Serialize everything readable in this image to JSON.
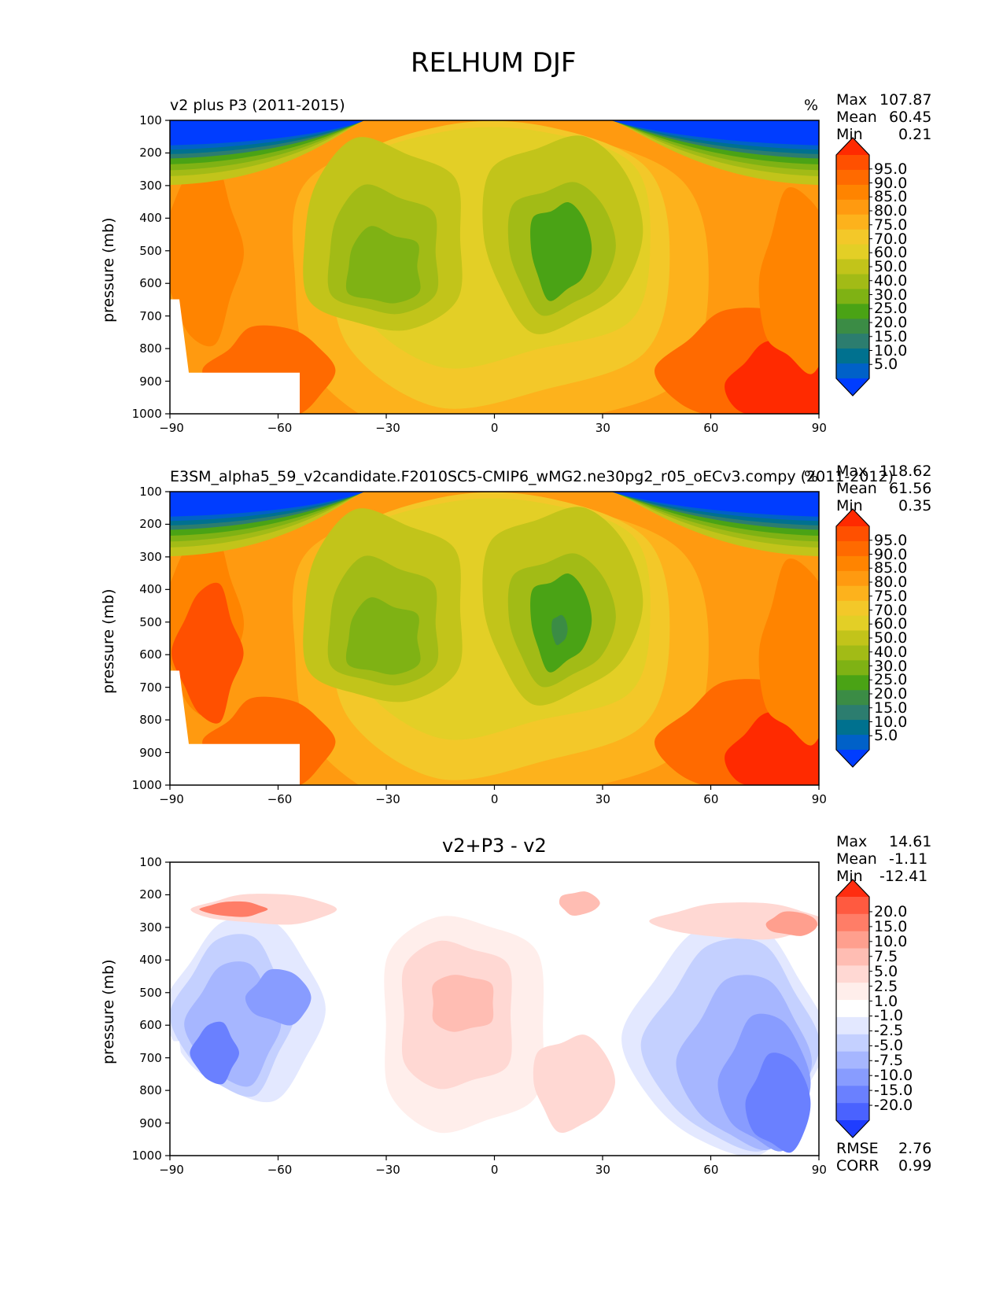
{
  "figure": {
    "title": "RELHUM DJF"
  },
  "chart_data": [
    {
      "type": "heatmap",
      "title": "v2 plus P3 (2011-2015)",
      "units": "%",
      "xlabel": "",
      "ylabel": "pressure (mb)",
      "xlim": [
        -90,
        90
      ],
      "ylim": [
        1000,
        100
      ],
      "xticks": [
        "−90",
        "−60",
        "−30",
        "0",
        "30",
        "60",
        "90"
      ],
      "yticks": [
        "100",
        "200",
        "300",
        "400",
        "500",
        "600",
        "700",
        "800",
        "900",
        "1000"
      ],
      "stats": {
        "max_label": "Max",
        "max": "107.87",
        "mean_label": "Mean",
        "mean": "60.45",
        "min_label": "Min",
        "min": "0.21"
      },
      "colorbar": {
        "levels": [
          "95.0",
          "90.0",
          "85.0",
          "80.0",
          "75.0",
          "70.0",
          "60.0",
          "50.0",
          "40.0",
          "30.0",
          "25.0",
          "20.0",
          "15.0",
          "10.0",
          "5.0"
        ],
        "colors": [
          "#ff2a00",
          "#ff5000",
          "#ff6a00",
          "#ff8400",
          "#ff9a10",
          "#fdb21c",
          "#f3c829",
          "#e3cf26",
          "#c2c41a",
          "#a2bb16",
          "#7fb214",
          "#4aa315",
          "#3b8c45",
          "#2c7d6f",
          "#00718f",
          "#0061c8",
          "#003dff"
        ]
      }
    },
    {
      "type": "heatmap",
      "title": "E3SM_alpha5_59_v2candidate.F2010SC5-CMIP6_wMG2.ne30pg2_r05_oECv3.compy (2011-2012)",
      "units": "%",
      "xlabel": "",
      "ylabel": "pressure (mb)",
      "xlim": [
        -90,
        90
      ],
      "ylim": [
        1000,
        100
      ],
      "xticks": [
        "−90",
        "−60",
        "−30",
        "0",
        "30",
        "60",
        "90"
      ],
      "yticks": [
        "100",
        "200",
        "300",
        "400",
        "500",
        "600",
        "700",
        "800",
        "900",
        "1000"
      ],
      "stats": {
        "max_label": "Max",
        "max": "118.62",
        "mean_label": "Mean",
        "mean": "61.56",
        "min_label": "Min",
        "min": "0.35"
      },
      "colorbar": {
        "levels": [
          "95.0",
          "90.0",
          "85.0",
          "80.0",
          "75.0",
          "70.0",
          "60.0",
          "50.0",
          "40.0",
          "30.0",
          "25.0",
          "20.0",
          "15.0",
          "10.0",
          "5.0"
        ],
        "colors": [
          "#ff2a00",
          "#ff5000",
          "#ff6a00",
          "#ff8400",
          "#ff9a10",
          "#fdb21c",
          "#f3c829",
          "#e3cf26",
          "#c2c41a",
          "#a2bb16",
          "#7fb214",
          "#4aa315",
          "#3b8c45",
          "#2c7d6f",
          "#00718f",
          "#0061c8",
          "#003dff"
        ]
      }
    },
    {
      "type": "heatmap",
      "title": "v2+P3 - v2",
      "units": "",
      "xlabel": "",
      "ylabel": "pressure (mb)",
      "xlim": [
        -90,
        90
      ],
      "ylim": [
        1000,
        100
      ],
      "xticks": [
        "−90",
        "−60",
        "−30",
        "0",
        "30",
        "60",
        "90"
      ],
      "yticks": [
        "100",
        "200",
        "300",
        "400",
        "500",
        "600",
        "700",
        "800",
        "900",
        "1000"
      ],
      "stats": {
        "max_label": "Max",
        "max": "14.61",
        "mean_label": "Mean",
        "mean": "-1.11",
        "min_label": "Min",
        "min": "-12.41"
      },
      "metrics": {
        "rmse_label": "RMSE",
        "rmse": "2.76",
        "corr_label": "CORR",
        "corr": "0.99"
      },
      "colorbar": {
        "levels": [
          "20.0",
          "15.0",
          "10.0",
          "7.5",
          "5.0",
          "2.5",
          "1.0",
          "-1.0",
          "-2.5",
          "-5.0",
          "-7.5",
          "-10.0",
          "-15.0",
          "-20.0"
        ],
        "colors": [
          "#ff2d10",
          "#ff5a40",
          "#ff7d67",
          "#ff9f8e",
          "#ffbdb3",
          "#ffd8d3",
          "#ffeeeb",
          "#ffffff",
          "#e3e8ff",
          "#c4d0ff",
          "#a6b6ff",
          "#889cff",
          "#6a80ff",
          "#4a62ff",
          "#1f3dff"
        ]
      }
    }
  ]
}
